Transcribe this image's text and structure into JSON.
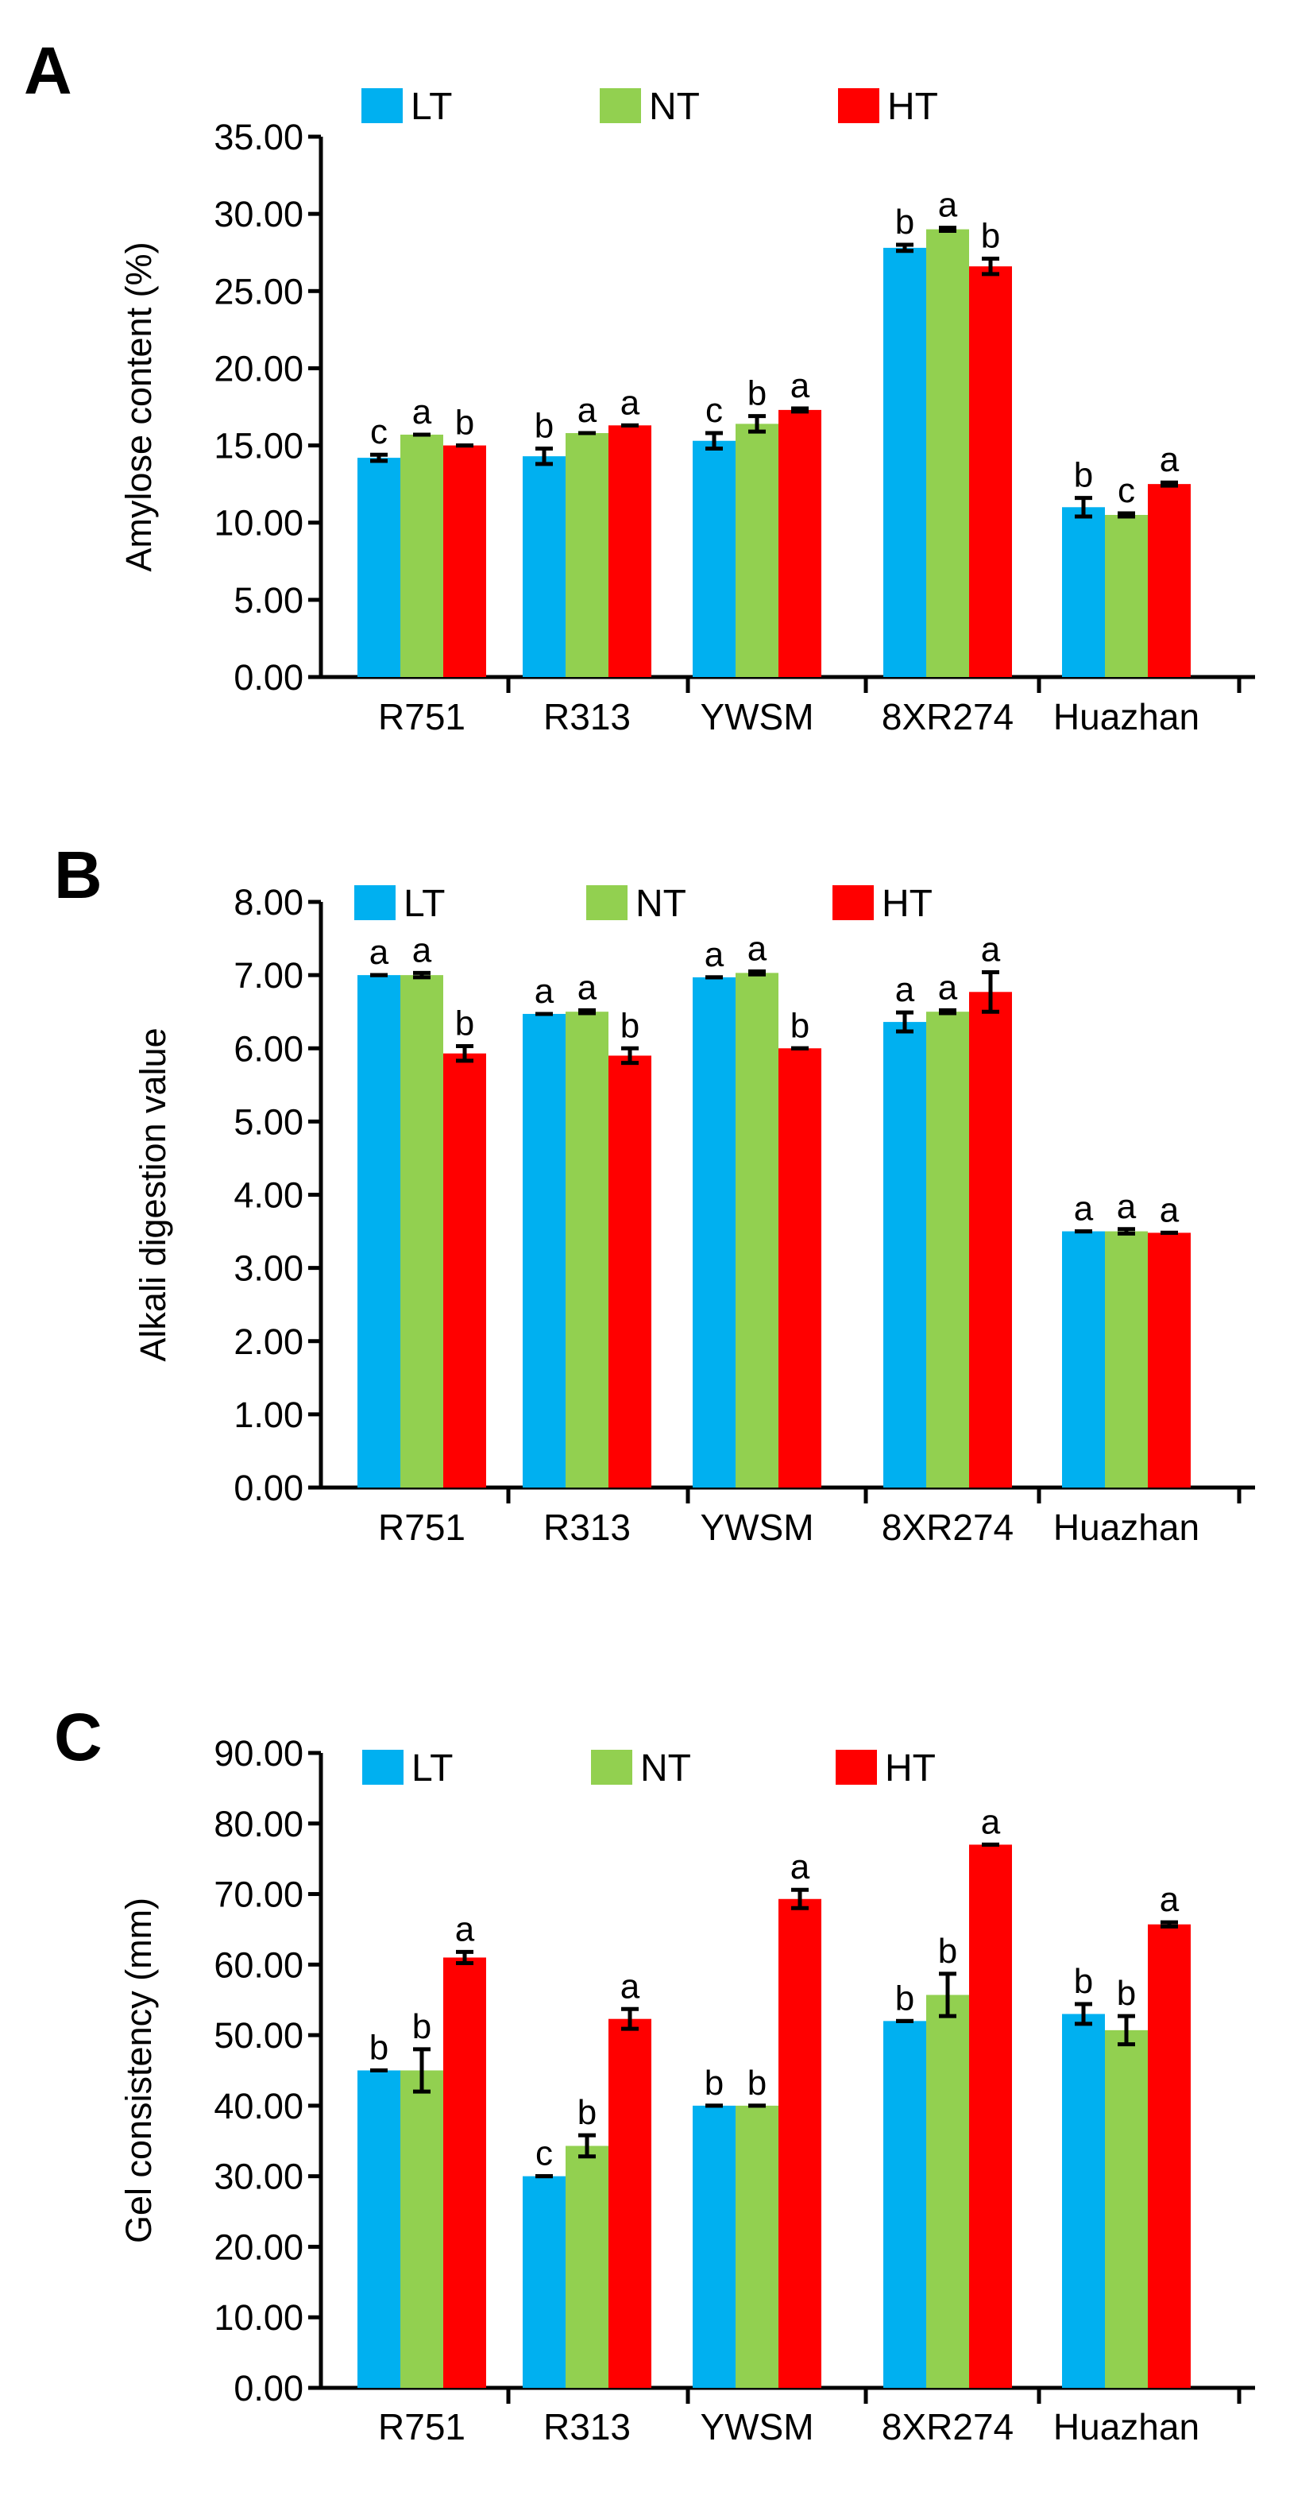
{
  "figure": {
    "panel_letters": [
      "A",
      "B",
      "C"
    ]
  },
  "chart_data": [
    {
      "type": "bar",
      "panel": "A",
      "title": "",
      "xlabel": "",
      "ylabel": "Amylose content (%)",
      "ylim": [
        0,
        35
      ],
      "yticks": [
        "0.00",
        "5.00",
        "10.00",
        "15.00",
        "20.00",
        "25.00",
        "30.00",
        "35.00"
      ],
      "categories": [
        "R751",
        "R313",
        "YWSM",
        "8XR274",
        "Huazhan"
      ],
      "series": [
        {
          "name": "LT",
          "color": "#00b0f0",
          "values": [
            14.2,
            14.3,
            15.3,
            27.8,
            11.0
          ],
          "errors": [
            0.2,
            0.5,
            0.5,
            0.2,
            0.6
          ],
          "sig": [
            "c",
            "b",
            "c",
            "b",
            "b"
          ]
        },
        {
          "name": "NT",
          "color": "#92d050",
          "values": [
            15.7,
            15.8,
            16.4,
            29.0,
            10.5
          ],
          "errors": [
            0.0,
            0.0,
            0.5,
            0.1,
            0.1
          ],
          "sig": [
            "a",
            "a",
            "b",
            "a",
            "c"
          ]
        },
        {
          "name": "HT",
          "color": "#ff0000",
          "values": [
            15.0,
            16.3,
            17.3,
            26.6,
            12.5
          ],
          "errors": [
            0.0,
            0.0,
            0.1,
            0.5,
            0.1
          ],
          "sig": [
            "b",
            "a",
            "a",
            "b",
            "a"
          ]
        }
      ],
      "legend_position": "top"
    },
    {
      "type": "bar",
      "panel": "B",
      "title": "",
      "xlabel": "",
      "ylabel": "Alkali digestion value",
      "ylim": [
        0,
        8
      ],
      "yticks": [
        "0.00",
        "1.00",
        "2.00",
        "3.00",
        "4.00",
        "5.00",
        "6.00",
        "7.00",
        "8.00"
      ],
      "categories": [
        "R751",
        "R313",
        "YWSM",
        "8XR274",
        "Huazhan"
      ],
      "series": [
        {
          "name": "LT",
          "color": "#00b0f0",
          "values": [
            7.0,
            6.47,
            6.97,
            6.36,
            3.5
          ],
          "errors": [
            0.0,
            0.0,
            0.0,
            0.13,
            0.0
          ],
          "sig": [
            "a",
            "a",
            "a",
            "a",
            "a"
          ]
        },
        {
          "name": "NT",
          "color": "#92d050",
          "values": [
            7.0,
            6.5,
            7.03,
            6.5,
            3.5
          ],
          "errors": [
            0.03,
            0.02,
            0.02,
            0.02,
            0.03
          ],
          "sig": [
            "a",
            "a",
            "a",
            "a",
            "a"
          ]
        },
        {
          "name": "HT",
          "color": "#ff0000",
          "values": [
            5.93,
            5.9,
            6.0,
            6.77,
            3.48
          ],
          "errors": [
            0.1,
            0.1,
            0.0,
            0.27,
            0.0
          ],
          "sig": [
            "b",
            "b",
            "b",
            "a",
            "a"
          ]
        }
      ],
      "legend_position": "top"
    },
    {
      "type": "bar",
      "panel": "C",
      "title": "",
      "xlabel": "",
      "ylabel": "Gel consistency (mm)",
      "ylim": [
        0,
        90
      ],
      "yticks": [
        "0.00",
        "10.00",
        "20.00",
        "30.00",
        "40.00",
        "50.00",
        "60.00",
        "70.00",
        "80.00",
        "90.00"
      ],
      "categories": [
        "R751",
        "R313",
        "YWSM",
        "8XR274",
        "Huazhan"
      ],
      "series": [
        {
          "name": "LT",
          "color": "#00b0f0",
          "values": [
            45.0,
            30.0,
            40.0,
            52.0,
            53.0
          ],
          "errors": [
            0.0,
            0.0,
            0.0,
            0.0,
            1.4
          ],
          "sig": [
            "b",
            "c",
            "b",
            "b",
            "b"
          ]
        },
        {
          "name": "NT",
          "color": "#92d050",
          "values": [
            45.0,
            34.3,
            40.0,
            55.7,
            50.7
          ],
          "errors": [
            3.0,
            1.5,
            0.0,
            3.0,
            2.0
          ],
          "sig": [
            "b",
            "b",
            "b",
            "b",
            "b"
          ]
        },
        {
          "name": "HT",
          "color": "#ff0000",
          "values": [
            61.0,
            52.3,
            69.3,
            77.0,
            65.7
          ],
          "errors": [
            0.8,
            1.4,
            1.3,
            0.0,
            0.3
          ],
          "sig": [
            "a",
            "a",
            "a",
            "a",
            "a"
          ]
        }
      ],
      "legend_position": "top"
    }
  ]
}
